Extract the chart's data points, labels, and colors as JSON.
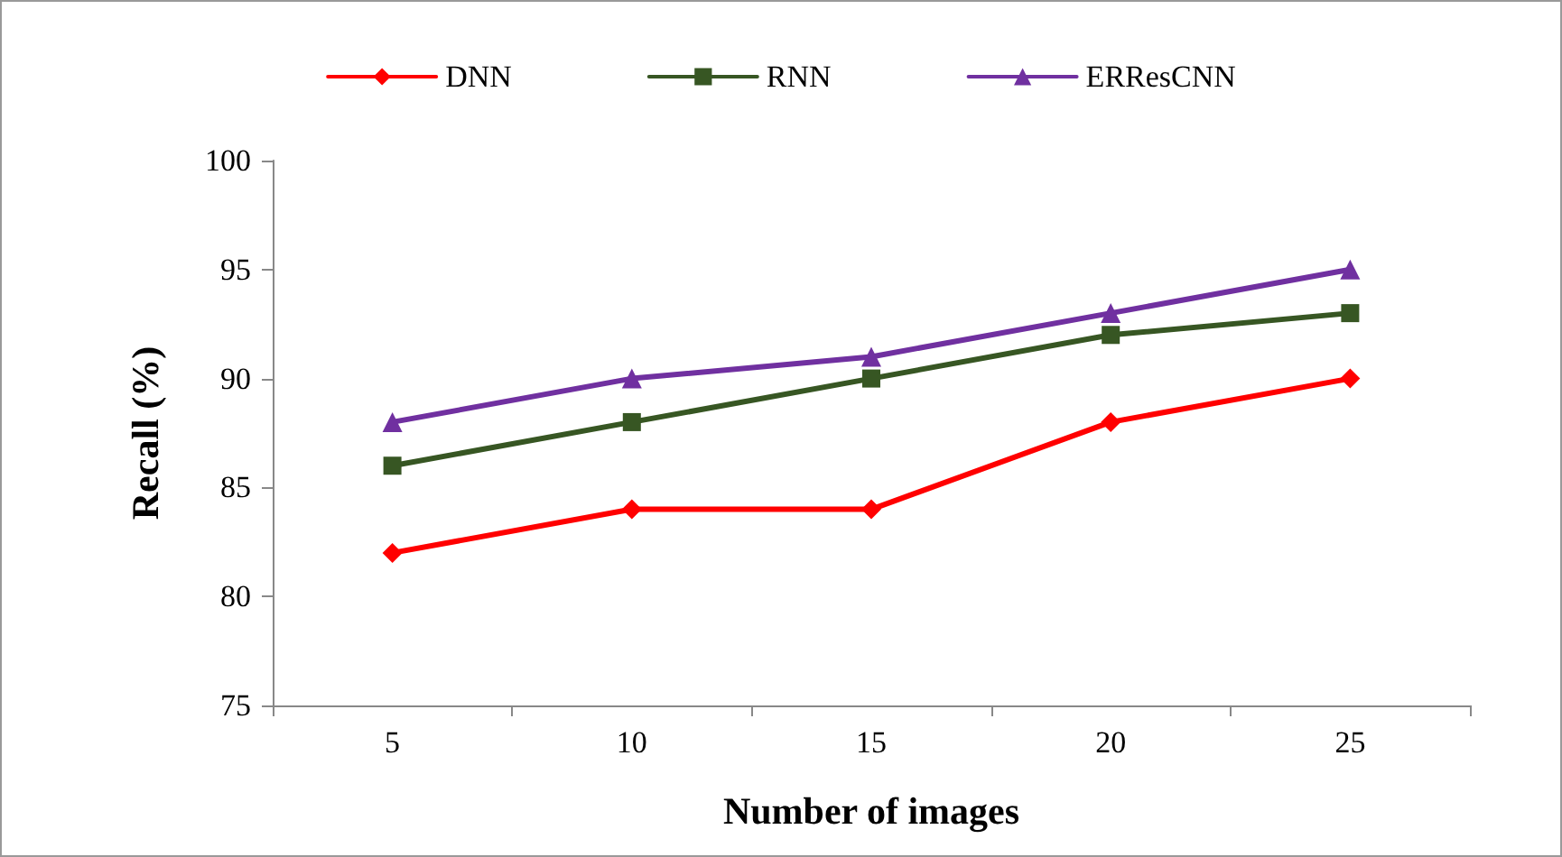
{
  "chart_data": {
    "type": "line",
    "xlabel": "Number of images",
    "ylabel": "Recall (%)",
    "categories": [
      "5",
      "10",
      "15",
      "20",
      "25"
    ],
    "series": [
      {
        "name": "DNN",
        "color": "#ff0000",
        "marker": "diamond",
        "values": [
          82,
          84,
          84,
          88,
          90
        ]
      },
      {
        "name": "RNN",
        "color": "#375623",
        "marker": "square",
        "values": [
          86,
          88,
          90,
          92,
          93
        ]
      },
      {
        "name": "ERResCNN",
        "color": "#7030a0",
        "marker": "triangle",
        "values": [
          88,
          90,
          91,
          93,
          95
        ]
      }
    ],
    "ylim": [
      75,
      100
    ],
    "yticks": [
      75,
      80,
      85,
      90,
      95,
      100
    ],
    "grid": false,
    "legend": "top",
    "line_style": "solid"
  }
}
